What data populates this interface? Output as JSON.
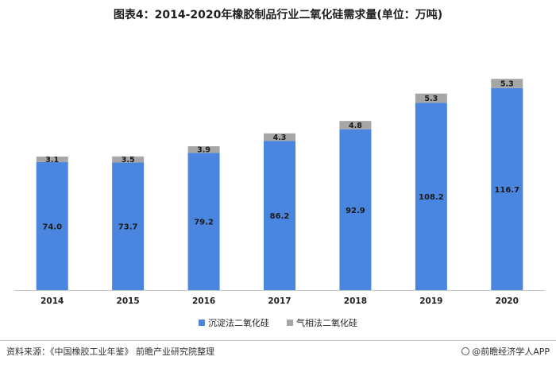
{
  "title": "图表4：2014-2020年橡胶制品行业二氧化硅需求量(单位：万吨)",
  "source": "资料来源：《中国橡胶工业年鉴》 前瞻产业研究院整理",
  "brand": "@前瞻经济学人APP",
  "colors": {
    "blue": "#4a86e0",
    "gray": "#a6a6a6"
  },
  "chart_data": {
    "type": "bar",
    "stacked": true,
    "categories": [
      "2014",
      "2015",
      "2016",
      "2017",
      "2018",
      "2019",
      "2020"
    ],
    "series": [
      {
        "name": "沉淀法二氧化硅",
        "values": [
          74.0,
          73.7,
          79.2,
          86.2,
          92.9,
          108.2,
          116.7
        ]
      },
      {
        "name": "气相法二氧化硅",
        "values": [
          3.1,
          3.5,
          3.9,
          4.3,
          4.8,
          5.3,
          5.3
        ]
      }
    ],
    "legend": "bottom",
    "grid": false,
    "ylim": [
      0,
      140
    ]
  }
}
